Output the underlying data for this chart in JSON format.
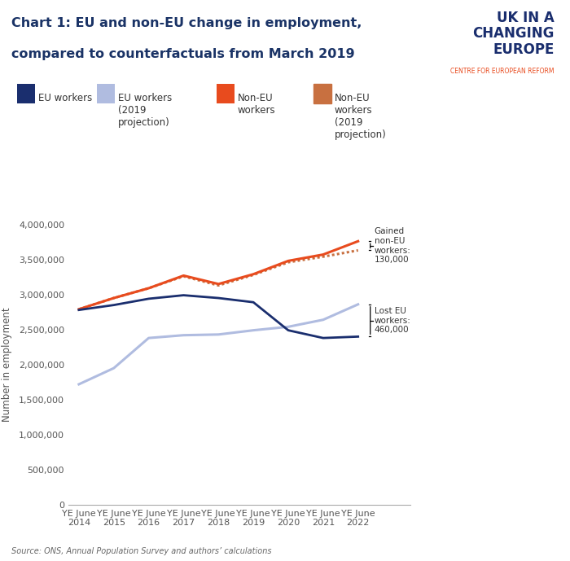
{
  "title_line1": "Chart 1: EU and non-EU change in employment,",
  "title_line2": "compared to counterfactuals from March 2019",
  "ylabel": "Number in employment",
  "source": "Source: ONS, Annual Population Survey and authors’ calculations",
  "background_color": "#ffffff",
  "x_labels": [
    "YE June\n2014",
    "YE June\n2015",
    "YE June\n2016",
    "YE June\n2017",
    "YE June\n2018",
    "YE June\n2019",
    "YE June\n2020",
    "YE June\n2021",
    "YE June\n2022"
  ],
  "x_positions": [
    0,
    1,
    2,
    3,
    4,
    5,
    6,
    7,
    8
  ],
  "eu_workers": [
    2780000,
    2850000,
    2940000,
    2990000,
    2950000,
    2890000,
    2490000,
    2380000,
    2400000
  ],
  "eu_proj": [
    1720000,
    1950000,
    2380000,
    2420000,
    2430000,
    2490000,
    2540000,
    2640000,
    2860000
  ],
  "noneu_workers": [
    2790000,
    2950000,
    3090000,
    3270000,
    3150000,
    3290000,
    3480000,
    3570000,
    3760000
  ],
  "noneu_proj": [
    2790000,
    2950000,
    3090000,
    3260000,
    3130000,
    3280000,
    3460000,
    3540000,
    3630000
  ],
  "eu_color": "#1a2e6e",
  "eu_proj_color": "#b0bce0",
  "noneu_color": "#e84b1e",
  "noneu_proj_color": "#c87040",
  "ylim": [
    0,
    4000000
  ],
  "yticks": [
    0,
    500000,
    1000000,
    1500000,
    2000000,
    2500000,
    3000000,
    3500000,
    4000000
  ],
  "annotation_gained": "Gained\nnon-EU\nworkers:\n130,000",
  "annotation_lost": "Lost EU\nworkers:\n460,000"
}
